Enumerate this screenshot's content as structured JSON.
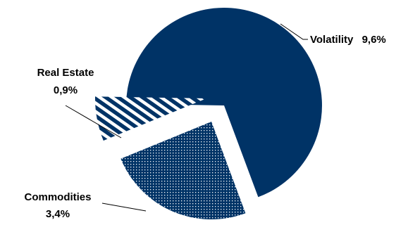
{
  "chart_data": {
    "type": "pie",
    "title": "",
    "exploded": true,
    "slices": [
      {
        "label": "Volatility",
        "value_label": "9,6%",
        "value": 9.6,
        "color": "#003366",
        "fill": "solid"
      },
      {
        "label": "Commodities",
        "value_label": "3,4%",
        "value": 3.4,
        "color": "#003366",
        "fill": "dotted"
      },
      {
        "label": "Real Estate",
        "value_label": "0,9%",
        "value": 0.9,
        "color": "#003366",
        "fill": "striped"
      }
    ]
  }
}
